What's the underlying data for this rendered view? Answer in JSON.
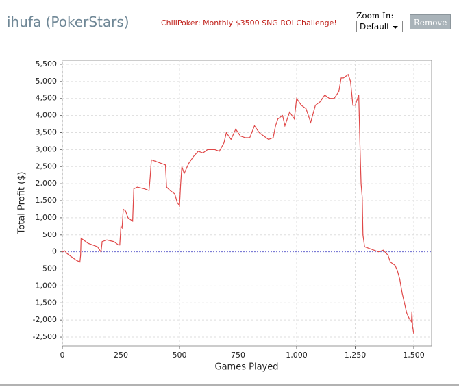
{
  "header": {
    "title": "ihufa (PokerStars)",
    "link": "ChiliPoker: Monthly $3500 SNG ROI Challenge!",
    "zoom_label": "Zoom In:",
    "zoom_option": "Default",
    "button": "Remove"
  },
  "chart_data": {
    "type": "line",
    "xlabel": "Games Played",
    "ylabel": "Total Profit ($)",
    "color": "#e04848",
    "grid": true,
    "zero_line": true,
    "xlim": [
      0,
      1576
    ],
    "ylim": [
      -2760,
      5620
    ],
    "xticks": [
      0,
      250,
      500,
      750,
      {
        "value": 1000,
        "label": "1,000"
      },
      {
        "value": 1250,
        "label": "1,250"
      },
      {
        "value": 1500,
        "label": "1,500"
      }
    ],
    "yticks": [
      {
        "value": -2500,
        "label": "-2,500"
      },
      {
        "value": -2000,
        "label": "-2,000"
      },
      {
        "value": -1500,
        "label": "-1,500"
      },
      {
        "value": -1000,
        "label": "-1,000"
      },
      -500,
      0,
      500,
      {
        "value": 1000,
        "label": "1,000"
      },
      {
        "value": 1500,
        "label": "1,500"
      },
      {
        "value": 2000,
        "label": "2,000"
      },
      {
        "value": 2500,
        "label": "2,500"
      },
      {
        "value": 3000,
        "label": "3,000"
      },
      {
        "value": 3500,
        "label": "3,500"
      },
      {
        "value": 4000,
        "label": "4,000"
      },
      {
        "value": 4500,
        "label": "4,500"
      },
      {
        "value": 5000,
        "label": "5,000"
      },
      {
        "value": 5500,
        "label": "5,500"
      }
    ],
    "x": [
      0,
      10,
      20,
      40,
      60,
      75,
      78,
      80,
      90,
      110,
      130,
      150,
      160,
      165,
      170,
      190,
      220,
      240,
      245,
      250,
      255,
      260,
      270,
      280,
      300,
      305,
      320,
      350,
      370,
      375,
      380,
      400,
      420,
      440,
      445,
      460,
      480,
      490,
      500,
      505,
      510,
      520,
      540,
      560,
      580,
      600,
      620,
      650,
      670,
      690,
      700,
      720,
      740,
      760,
      780,
      800,
      820,
      840,
      860,
      880,
      900,
      910,
      920,
      940,
      950,
      970,
      990,
      1000,
      1020,
      1040,
      1060,
      1080,
      1100,
      1120,
      1140,
      1160,
      1180,
      1190,
      1200,
      1220,
      1230,
      1240,
      1250,
      1260,
      1265,
      1270,
      1275,
      1280,
      1283,
      1290,
      1310,
      1330,
      1350,
      1370,
      1390,
      1400,
      1420,
      1430,
      1440,
      1450,
      1460,
      1470,
      1480,
      1490,
      1492,
      1495,
      1500
    ],
    "values": [
      0,
      30,
      -50,
      -150,
      -250,
      -300,
      -100,
      400,
      350,
      250,
      200,
      150,
      50,
      -10,
      300,
      350,
      300,
      200,
      200,
      750,
      700,
      1250,
      1200,
      1000,
      900,
      1850,
      1900,
      1850,
      1800,
      2200,
      2700,
      2650,
      2600,
      2550,
      1900,
      1800,
      1700,
      1450,
      1350,
      2000,
      2500,
      2300,
      2600,
      2800,
      2950,
      2900,
      3000,
      3000,
      2950,
      3200,
      3500,
      3300,
      3600,
      3400,
      3350,
      3350,
      3700,
      3500,
      3400,
      3300,
      3350,
      3700,
      3900,
      4000,
      3700,
      4100,
      3900,
      4500,
      4300,
      4200,
      3800,
      4300,
      4400,
      4600,
      4500,
      4500,
      4700,
      5100,
      5100,
      5200,
      5000,
      4300,
      4300,
      4500,
      4600,
      3200,
      2000,
      1600,
      500,
      150,
      100,
      50,
      0,
      50,
      -100,
      -300,
      -400,
      -550,
      -800,
      -1200,
      -1500,
      -1800,
      -1950,
      -2050,
      -1750,
      -2200,
      -2400
    ]
  }
}
